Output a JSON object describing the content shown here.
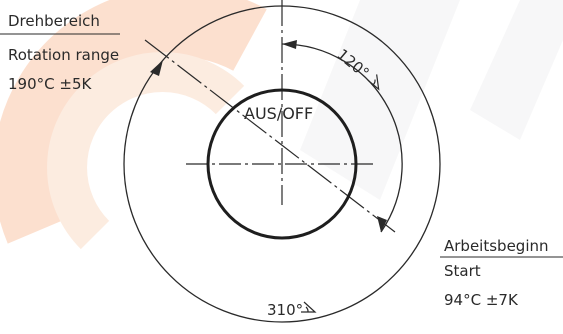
{
  "diagram": {
    "label_left": {
      "line1": "Drehbereich",
      "line2": "Rotation range",
      "line3": "190°C  ±5K"
    },
    "label_right": {
      "line1": "Arbeitsbeginn",
      "line2": "Start",
      "line3": "94°C  ±7K"
    },
    "center_label": "AUS/OFF",
    "angle_inner": "120°",
    "angle_outer": "310°",
    "watermark_color": "#f7a878",
    "line_color": "#2a2a2a"
  }
}
